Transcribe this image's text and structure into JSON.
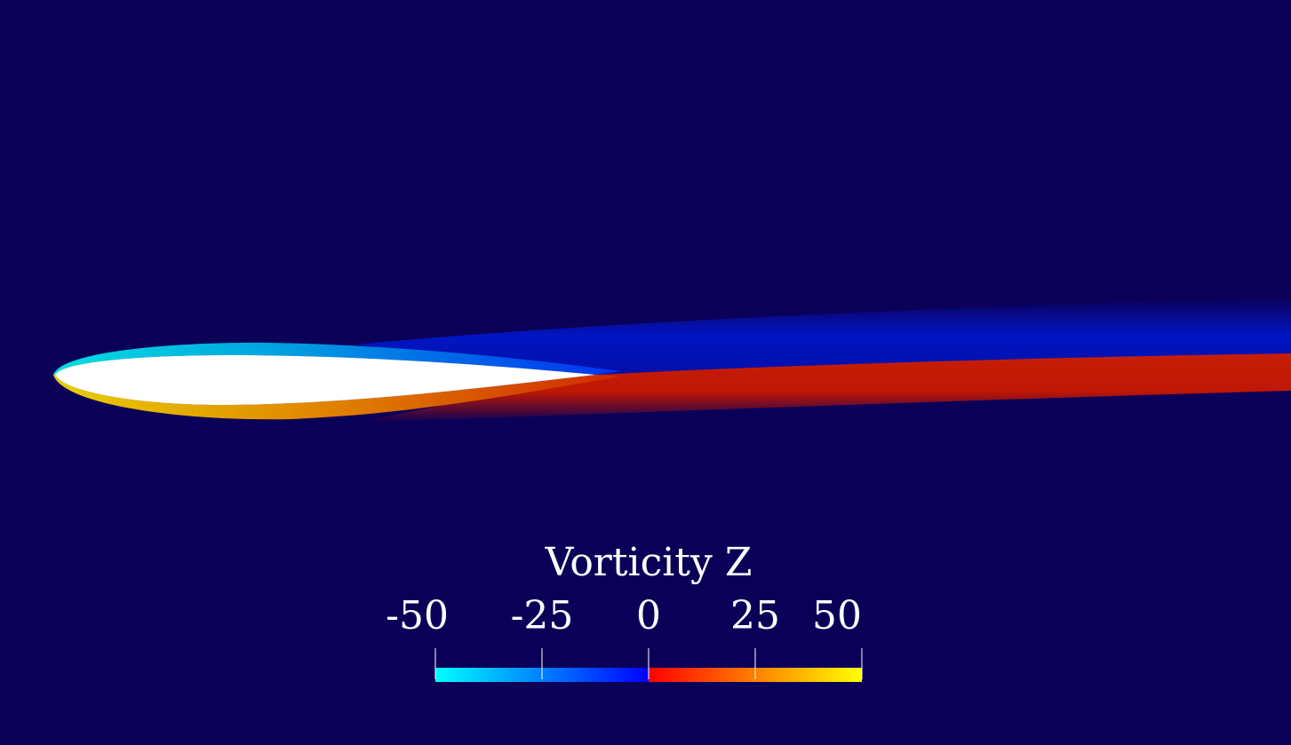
{
  "colorbar": {
    "title": "Vorticity Z",
    "range": [
      -50,
      50
    ],
    "ticks": [
      -50,
      -25,
      0,
      25,
      50
    ],
    "colors": {
      "negative": [
        "#00ffff",
        "#0000ff"
      ],
      "positive": [
        "#ff0000",
        "#ffff00"
      ]
    }
  }
}
